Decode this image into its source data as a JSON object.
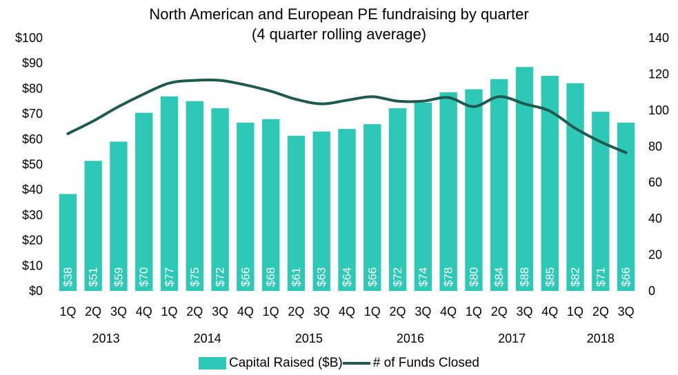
{
  "chart_data": {
    "type": "bar",
    "title": "North American and European PE fundraising by quarter",
    "subtitle": "(4 quarter rolling average)",
    "categories": [
      "1Q",
      "2Q",
      "3Q",
      "4Q",
      "1Q",
      "2Q",
      "3Q",
      "4Q",
      "1Q",
      "2Q",
      "3Q",
      "4Q",
      "1Q",
      "2Q",
      "3Q",
      "4Q",
      "1Q",
      "2Q",
      "3Q",
      "4Q",
      "1Q",
      "2Q",
      "3Q"
    ],
    "years": [
      {
        "label": "2013",
        "first": 0,
        "last": 3
      },
      {
        "label": "2014",
        "first": 4,
        "last": 7
      },
      {
        "label": "2015",
        "first": 8,
        "last": 11
      },
      {
        "label": "2016",
        "first": 12,
        "last": 15
      },
      {
        "label": "2017",
        "first": 16,
        "last": 19
      },
      {
        "label": "2018",
        "first": 20,
        "last": 22
      }
    ],
    "series": [
      {
        "name": "Capital Raised ($B)",
        "type": "bar",
        "axis": "left",
        "values": [
          38.3,
          51.4,
          59.0,
          70.4,
          76.9,
          75.0,
          72.2,
          66.5,
          67.9,
          61.3,
          63.0,
          64.0,
          65.9,
          72.2,
          74.4,
          78.5,
          79.7,
          83.7,
          88.5,
          85.0,
          82.1,
          70.8,
          66.5
        ],
        "labels": [
          "$38",
          "$51",
          "$59",
          "$70",
          "$77",
          "$75",
          "$72",
          "$66",
          "$68",
          "$61",
          "$63",
          "$64",
          "$66",
          "$72",
          "$74",
          "$78",
          "$80",
          "$84",
          "$88",
          "$85",
          "$82",
          "$71",
          "$66"
        ]
      },
      {
        "name": "# of Funds Closed",
        "type": "line",
        "axis": "right",
        "values": [
          87,
          94,
          102,
          109,
          115,
          116.5,
          116.5,
          114,
          110.5,
          106,
          103.5,
          105.5,
          107.5,
          105,
          105,
          107,
          102,
          107.5,
          103.5,
          99.5,
          90,
          82.5,
          76.5
        ]
      }
    ],
    "y_left": {
      "min": 0,
      "max": 100,
      "step": 10,
      "tick_labels": [
        "$0",
        "$10",
        "$20",
        "$30",
        "$40",
        "$50",
        "$60",
        "$70",
        "$80",
        "$90",
        "$100"
      ]
    },
    "y_right": {
      "min": 0,
      "max": 140,
      "step": 20,
      "tick_labels": [
        "0",
        "20",
        "40",
        "60",
        "80",
        "100",
        "120",
        "140"
      ]
    },
    "grid": false,
    "legend_position": "bottom",
    "colors": {
      "bar": "#2ec8b6",
      "line": "#1f5a50",
      "bar_label": "#ffffff",
      "text": "#000000"
    }
  }
}
